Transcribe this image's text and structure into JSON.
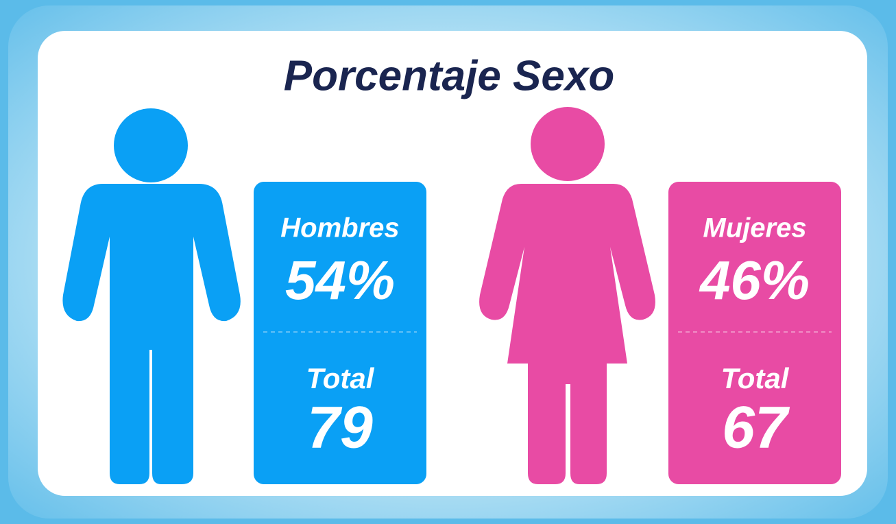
{
  "header": {
    "title": "Porcentaje Sexo"
  },
  "groups": [
    {
      "label": "Hombres",
      "percent": "54%",
      "total_label": "Total",
      "total": "79"
    },
    {
      "label": "Mujeres",
      "percent": "46%",
      "total_label": "Total",
      "total": "67"
    }
  ]
}
